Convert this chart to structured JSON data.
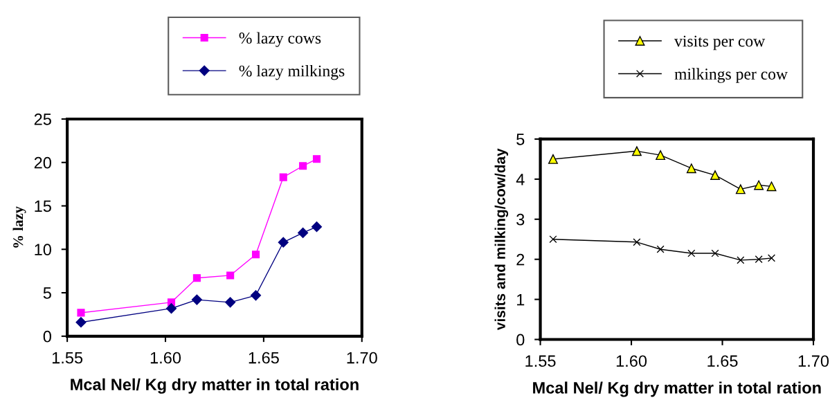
{
  "chart_data": [
    {
      "type": "line",
      "xlabel": "Mcal Nel/ Kg dry matter in total ration",
      "ylabel": "% lazy",
      "x": [
        1.557,
        1.603,
        1.616,
        1.633,
        1.646,
        1.66,
        1.67,
        1.677
      ],
      "xlim": [
        1.55,
        1.7
      ],
      "xticks": [
        {
          "value": 1.55,
          "label": "1.55"
        },
        {
          "value": 1.6,
          "label": "1.60"
        },
        {
          "value": 1.65,
          "label": "1.65"
        },
        {
          "value": 1.7,
          "label": "1.70"
        }
      ],
      "ylim": [
        0,
        25
      ],
      "yticks": [
        0,
        5,
        10,
        15,
        20,
        25
      ],
      "grid": false,
      "legend": "top right",
      "series": [
        {
          "name": "% lazy cows",
          "color": "#ff00ff",
          "marker": "square",
          "values": [
            2.7,
            3.9,
            6.7,
            7.0,
            9.4,
            18.3,
            19.6,
            20.4
          ]
        },
        {
          "name": "% lazy milkings",
          "color": "#000080",
          "marker": "diamond",
          "values": [
            1.6,
            3.2,
            4.2,
            3.9,
            4.7,
            10.8,
            11.9,
            12.6
          ]
        }
      ]
    },
    {
      "type": "line",
      "xlabel": "Mcal Nel/ Kg dry matter in total ration",
      "ylabel": "visits and milking/cow/day",
      "x": [
        1.557,
        1.603,
        1.616,
        1.633,
        1.646,
        1.66,
        1.67,
        1.677
      ],
      "xlim": [
        1.55,
        1.7
      ],
      "xticks": [
        {
          "value": 1.55,
          "label": "1.55"
        },
        {
          "value": 1.6,
          "label": "1.60"
        },
        {
          "value": 1.65,
          "label": "1.65"
        },
        {
          "value": 1.7,
          "label": "1.70"
        }
      ],
      "ylim": [
        0,
        5
      ],
      "yticks": [
        0,
        1,
        2,
        3,
        4,
        5
      ],
      "grid": false,
      "legend": "top right",
      "series": [
        {
          "name": "visits per cow",
          "color": "#000000",
          "marker": "triangle",
          "values": [
            4.5,
            4.7,
            4.6,
            4.27,
            4.1,
            3.75,
            3.85,
            3.82
          ]
        },
        {
          "name": "milkings per cow",
          "color": "#000000",
          "marker": "cross",
          "values": [
            2.5,
            2.43,
            2.25,
            2.15,
            2.15,
            1.98,
            2.0,
            2.03
          ]
        }
      ]
    }
  ]
}
